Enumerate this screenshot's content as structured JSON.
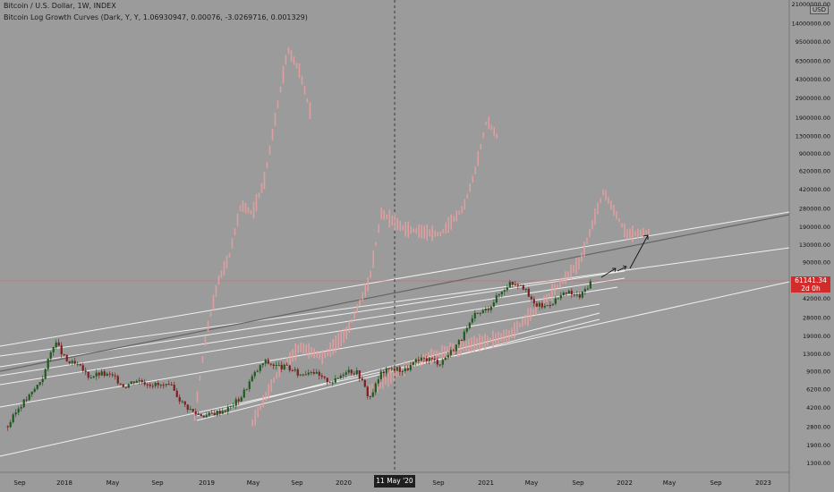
{
  "header": {
    "title": "Bitcoin / U.S. Dollar, 1W, INDEX",
    "indicator": "Bitcoin Log Growth Curves (Dark, Y, Y, 1.06930947, 0.00076, -3.0269716, 0.001329)"
  },
  "currency_label": "USD",
  "price_label": {
    "value": "61141.34",
    "countdown": "2d 0h"
  },
  "crosshair_date": "11 May '20",
  "colors": {
    "background": "#9b9b9b",
    "up_candle": "#1e5a1e",
    "down_candle": "#7a1f1f",
    "fractal_overlay": "#e9a0a0",
    "curve_lines": "#ffffff",
    "regression_line": "#666666",
    "price_line": "#e05050",
    "label_red": "#d22b2b"
  },
  "chart_data": {
    "type": "candlestick",
    "y_scale": "log",
    "ylim": [
      1200,
      21000000
    ],
    "x_tick_labels": [
      "Sep",
      "2018",
      "May",
      "Sep",
      "2019",
      "May",
      "Sep",
      "2020",
      "",
      "Sep",
      "2021",
      "May",
      "Sep",
      "2022",
      "May",
      "Sep",
      "2023"
    ],
    "y_tick_labels": [
      "21000000.00",
      "14000000.00",
      "9500000.00",
      "6300000.00",
      "4300000.00",
      "2900000.00",
      "1900000.00",
      "1300000.00",
      "900000.00",
      "620000.00",
      "420000.00",
      "280000.00",
      "190000.00",
      "130000.00",
      "90000.00",
      "61000.00",
      "42000.00",
      "28000.00",
      "19000.00",
      "13000.00",
      "9000.00",
      "6200.00",
      "4200.00",
      "2800.00",
      "1900.00",
      "1300.00"
    ],
    "price_series": [
      {
        "date": "2017-08-01",
        "close": 2800
      },
      {
        "date": "2017-09-01",
        "close": 4300
      },
      {
        "date": "2017-10-01",
        "close": 5500
      },
      {
        "date": "2017-11-01",
        "close": 8000
      },
      {
        "date": "2017-12-01",
        "close": 17000
      },
      {
        "date": "2018-01-01",
        "close": 11000
      },
      {
        "date": "2018-02-01",
        "close": 10000
      },
      {
        "date": "2018-03-01",
        "close": 8000
      },
      {
        "date": "2018-04-01",
        "close": 8500
      },
      {
        "date": "2018-05-01",
        "close": 8000
      },
      {
        "date": "2018-06-01",
        "close": 6500
      },
      {
        "date": "2018-07-01",
        "close": 7500
      },
      {
        "date": "2018-08-01",
        "close": 7000
      },
      {
        "date": "2018-09-01",
        "close": 6600
      },
      {
        "date": "2018-10-01",
        "close": 6400
      },
      {
        "date": "2018-11-01",
        "close": 4500
      },
      {
        "date": "2018-12-01",
        "close": 3700
      },
      {
        "date": "2019-01-01",
        "close": 3500
      },
      {
        "date": "2019-02-01",
        "close": 3800
      },
      {
        "date": "2019-03-01",
        "close": 4100
      },
      {
        "date": "2019-04-01",
        "close": 5200
      },
      {
        "date": "2019-05-01",
        "close": 8000
      },
      {
        "date": "2019-06-01",
        "close": 11000
      },
      {
        "date": "2019-07-01",
        "close": 10000
      },
      {
        "date": "2019-08-01",
        "close": 9600
      },
      {
        "date": "2019-09-01",
        "close": 8300
      },
      {
        "date": "2019-10-01",
        "close": 9200
      },
      {
        "date": "2019-11-01",
        "close": 7500
      },
      {
        "date": "2019-12-01",
        "close": 7200
      },
      {
        "date": "2020-01-01",
        "close": 9300
      },
      {
        "date": "2020-02-01",
        "close": 8600
      },
      {
        "date": "2020-03-01",
        "close": 5000
      },
      {
        "date": "2020-04-01",
        "close": 8700
      },
      {
        "date": "2020-05-01",
        "close": 9500
      },
      {
        "date": "2020-06-01",
        "close": 9100
      },
      {
        "date": "2020-07-01",
        "close": 11000
      },
      {
        "date": "2020-08-01",
        "close": 11700
      },
      {
        "date": "2020-09-01",
        "close": 10700
      },
      {
        "date": "2020-10-01",
        "close": 13800
      },
      {
        "date": "2020-11-01",
        "close": 19000
      },
      {
        "date": "2020-12-01",
        "close": 29000
      },
      {
        "date": "2021-01-01",
        "close": 33000
      },
      {
        "date": "2021-02-01",
        "close": 45000
      },
      {
        "date": "2021-03-01",
        "close": 58000
      },
      {
        "date": "2021-04-01",
        "close": 57000
      },
      {
        "date": "2021-05-01",
        "close": 37000
      },
      {
        "date": "2021-06-01",
        "close": 35000
      },
      {
        "date": "2021-07-01",
        "close": 41000
      },
      {
        "date": "2021-08-01",
        "close": 47000
      },
      {
        "date": "2021-09-01",
        "close": 43000
      },
      {
        "date": "2021-10-01",
        "close": 61141
      }
    ],
    "fractal_overlay": [
      {
        "date": "2018-12-01",
        "value": 3500
      },
      {
        "date": "2019-01-01",
        "value": 20000
      },
      {
        "date": "2019-02-01",
        "value": 60000
      },
      {
        "date": "2019-03-01",
        "value": 100000
      },
      {
        "date": "2019-04-01",
        "value": 300000
      },
      {
        "date": "2019-05-01",
        "value": 250000
      },
      {
        "date": "2019-06-01",
        "value": 500000
      },
      {
        "date": "2019-07-01",
        "value": 2000000
      },
      {
        "date": "2019-08-01",
        "value": 8000000
      },
      {
        "date": "2019-09-01",
        "value": 5000000
      },
      {
        "date": "2019-10-01",
        "value": 2000000
      },
      {
        "date": "2019-05-01",
        "value": 3000
      },
      {
        "date": "2019-07-01",
        "value": 8000
      },
      {
        "date": "2019-09-01",
        "value": 15000
      },
      {
        "date": "2019-11-01",
        "value": 12000
      },
      {
        "date": "2020-01-01",
        "value": 20000
      },
      {
        "date": "2020-03-01",
        "value": 60000
      },
      {
        "date": "2020-04-01",
        "value": 250000
      },
      {
        "date": "2020-06-01",
        "value": 180000
      },
      {
        "date": "2020-09-01",
        "value": 160000
      },
      {
        "date": "2020-11-01",
        "value": 280000
      },
      {
        "date": "2020-12-01",
        "value": 600000
      },
      {
        "date": "2021-01-01",
        "value": 1800000
      },
      {
        "date": "2021-02-01",
        "value": 1200000
      },
      {
        "date": "2020-03-01",
        "value": 6000
      },
      {
        "date": "2020-07-01",
        "value": 11000
      },
      {
        "date": "2020-11-01",
        "value": 15000
      },
      {
        "date": "2021-03-01",
        "value": 19000
      },
      {
        "date": "2021-06-01",
        "value": 40000
      },
      {
        "date": "2021-09-01",
        "value": 90000
      },
      {
        "date": "2021-11-01",
        "value": 400000
      },
      {
        "date": "2022-01-01",
        "value": 160000
      },
      {
        "date": "2022-03-01",
        "value": 170000
      }
    ]
  }
}
